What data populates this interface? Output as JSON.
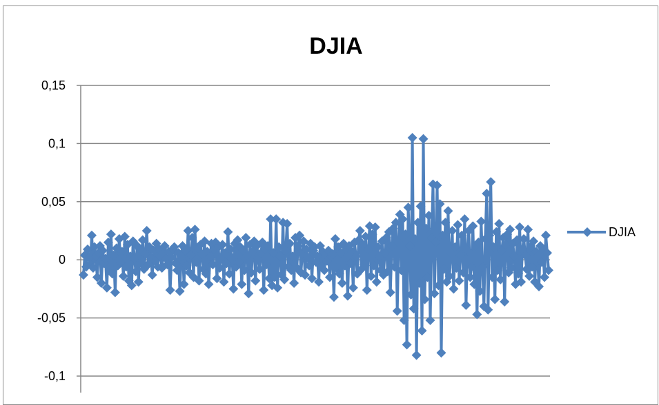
{
  "chart_data": {
    "type": "line",
    "title": "DJIA",
    "xlabel": "",
    "ylabel": "",
    "ylim": [
      -0.1,
      0.15
    ],
    "yticks": [
      0.15,
      0.1,
      0.05,
      0,
      -0.05,
      -0.1
    ],
    "ytick_labels": [
      "0,15",
      "0,1",
      "0,05",
      "0",
      "-0,05",
      "-0,1"
    ],
    "grid": "horizontal",
    "legend_position": "right",
    "series": [
      {
        "name": "DJIA",
        "color": "#4f81bd",
        "marker": "diamond",
        "values": [
          -0.013,
          0.004,
          -0.006,
          0.009,
          0.002,
          -0.004,
          0.021,
          -0.007,
          0.011,
          0.003,
          -0.015,
          0.006,
          0.012,
          -0.02,
          0.008,
          -0.003,
          0.001,
          -0.024,
          0.015,
          -0.009,
          0.022,
          -0.012,
          0.004,
          -0.028,
          0.01,
          -0.005,
          0.018,
          -0.002,
          0.007,
          -0.014,
          0.02,
          -0.006,
          0.013,
          -0.018,
          0.003,
          -0.022,
          0.016,
          0.001,
          -0.01,
          0.012,
          -0.019,
          0.009,
          -0.003,
          0.017,
          -0.008,
          0.005,
          0.025,
          -0.004,
          0.011,
          0.002,
          -0.013,
          0.008,
          -0.001,
          0.014,
          -0.006,
          0.009,
          0.003,
          -0.007,
          0.006,
          0.012,
          0.001,
          -0.004,
          0.007,
          -0.026,
          0.002,
          0.009,
          0.011,
          -0.003,
          -0.009,
          0.006,
          -0.027,
          0.003,
          0.012,
          -0.021,
          0.008,
          -0.005,
          0.025,
          -0.011,
          0.004,
          0.019,
          -0.015,
          0.026,
          -0.002,
          0.01,
          -0.018,
          0.013,
          0.005,
          -0.008,
          0.016,
          -0.012,
          0.007,
          -0.021,
          0.003,
          0.014,
          -0.004,
          0.009,
          0.015,
          -0.016,
          0.011,
          -0.007,
          0.002,
          0.013,
          -0.019,
          0.006,
          -0.003,
          0.024,
          -0.012,
          0.009,
          0.002,
          -0.025,
          0.014,
          -0.006,
          0.017,
          -0.002,
          0.011,
          -0.021,
          0.008,
          -0.009,
          0.019,
          0.004,
          -0.029,
          0.013,
          -0.011,
          0.007,
          0.016,
          -0.018,
          0.012,
          0.001,
          -0.008,
          0.006,
          0.015,
          -0.026,
          0.009,
          -0.004,
          0.012,
          -0.016,
          0.035,
          -0.022,
          0.006,
          -0.015,
          0.035,
          -0.024,
          0.011,
          0.003,
          -0.013,
          0.032,
          -0.017,
          0.008,
          0.031,
          -0.006,
          0.014,
          -0.009,
          0.003,
          -0.02,
          0.019,
          -0.007,
          0.012,
          0.021,
          -0.011,
          0.005,
          0.016,
          -0.013,
          0.009,
          0.002,
          -0.005,
          0.014,
          -0.016,
          0.008,
          0.011,
          -0.002,
          0.003,
          -0.019,
          0.012,
          -0.006,
          0.007,
          -0.009,
          0.004,
          -0.001,
          0.008,
          -0.015,
          0.003,
          0.005,
          -0.032,
          0.018,
          -0.007,
          0.011,
          -0.012,
          0.006,
          -0.02,
          0.014,
          -0.005,
          0.009,
          -0.031,
          0.012,
          -0.003,
          0.007,
          -0.024,
          0.015,
          0.003,
          -0.012,
          0.017,
          0.025,
          -0.008,
          0.013,
          -0.004,
          0.02,
          -0.026,
          0.009,
          0.029,
          -0.014,
          0.022,
          -0.005,
          0.028,
          -0.019,
          0.011,
          0.003,
          -0.009,
          0.016,
          -0.013,
          0.006,
          0.019,
          -0.01,
          0.024,
          -0.028,
          0.012,
          0.027,
          -0.006,
          0.032,
          -0.044,
          0.015,
          0.039,
          -0.009,
          0.035,
          -0.052,
          0.022,
          -0.073,
          0.045,
          0.012,
          -0.03,
          0.105,
          -0.042,
          0.018,
          -0.082,
          0.032,
          -0.02,
          0.046,
          -0.061,
          0.104,
          -0.034,
          0.027,
          -0.015,
          0.038,
          -0.052,
          0.019,
          0.065,
          -0.029,
          0.015,
          0.064,
          -0.022,
          0.048,
          -0.08,
          0.021,
          -0.008,
          0.032,
          -0.019,
          0.042,
          -0.014,
          0.006,
          0.025,
          -0.025,
          0.011,
          -0.007,
          0.03,
          -0.018,
          0.004,
          0.021,
          -0.011,
          0.035,
          -0.039,
          0.008,
          0.025,
          -0.015,
          -0.006,
          0.029,
          -0.021,
          0.012,
          -0.047,
          0.015,
          -0.027,
          0.033,
          -0.006,
          -0.04,
          0.018,
          0.057,
          -0.043,
          0.021,
          0.067,
          -0.015,
          0.011,
          -0.034,
          0.024,
          -0.009,
          0.031,
          -0.017,
          0.008,
          0.019,
          -0.036,
          0.013,
          0.022,
          -0.011,
          0.026,
          -0.007,
          0.014,
          0.003,
          -0.021,
          0.017,
          -0.012,
          0.028,
          -0.019,
          0.009,
          0.018,
          0.004,
          -0.008,
          0.026,
          -0.014,
          0.011,
          -0.006,
          0.016,
          -0.019,
          0.007,
          0.003,
          -0.023,
          0.012,
          -0.002,
          0.008,
          -0.015,
          0.021,
          0.006,
          -0.009
        ]
      }
    ]
  }
}
